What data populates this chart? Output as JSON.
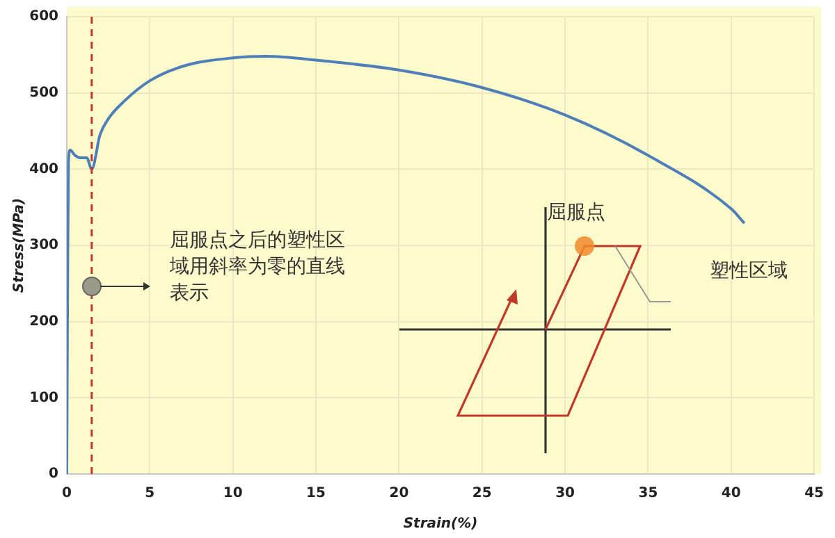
{
  "chart_data": {
    "type": "line",
    "xlabel": "Strain(%)",
    "ylabel": "Stress(MPa)",
    "xlim": [
      0,
      45
    ],
    "xticks": [
      0,
      5,
      10,
      15,
      20,
      25,
      30,
      35,
      40,
      45
    ],
    "ylim": [
      0,
      600
    ],
    "yticks": [
      0,
      100,
      200,
      300,
      400,
      500,
      600
    ],
    "grid": true,
    "legend": false,
    "marker": "none",
    "line_style": "solid",
    "series": [
      {
        "color": "#4f7fb8",
        "x": [
          0,
          0.05,
          0.1,
          0.2,
          0.5,
          0.8,
          1.2,
          1.5,
          2,
          2.5,
          3.5,
          5,
          7,
          10,
          12,
          15,
          20,
          25,
          30,
          35,
          40,
          40.8
        ],
        "values": [
          0,
          250,
          410,
          425,
          418,
          415,
          415,
          400,
          445,
          466,
          490,
          516,
          535,
          546,
          548,
          543,
          530,
          507,
          471,
          418,
          348,
          329
        ]
      }
    ],
    "ref_lines": [
      {
        "axis": "x",
        "value": 1.5,
        "color": "#c0392b",
        "line_style": "dashed"
      }
    ],
    "annotations": [
      "屈服点之后的塑性区域用斜率为零的直线表示",
      "屈服点",
      "塑性区域"
    ]
  }
}
